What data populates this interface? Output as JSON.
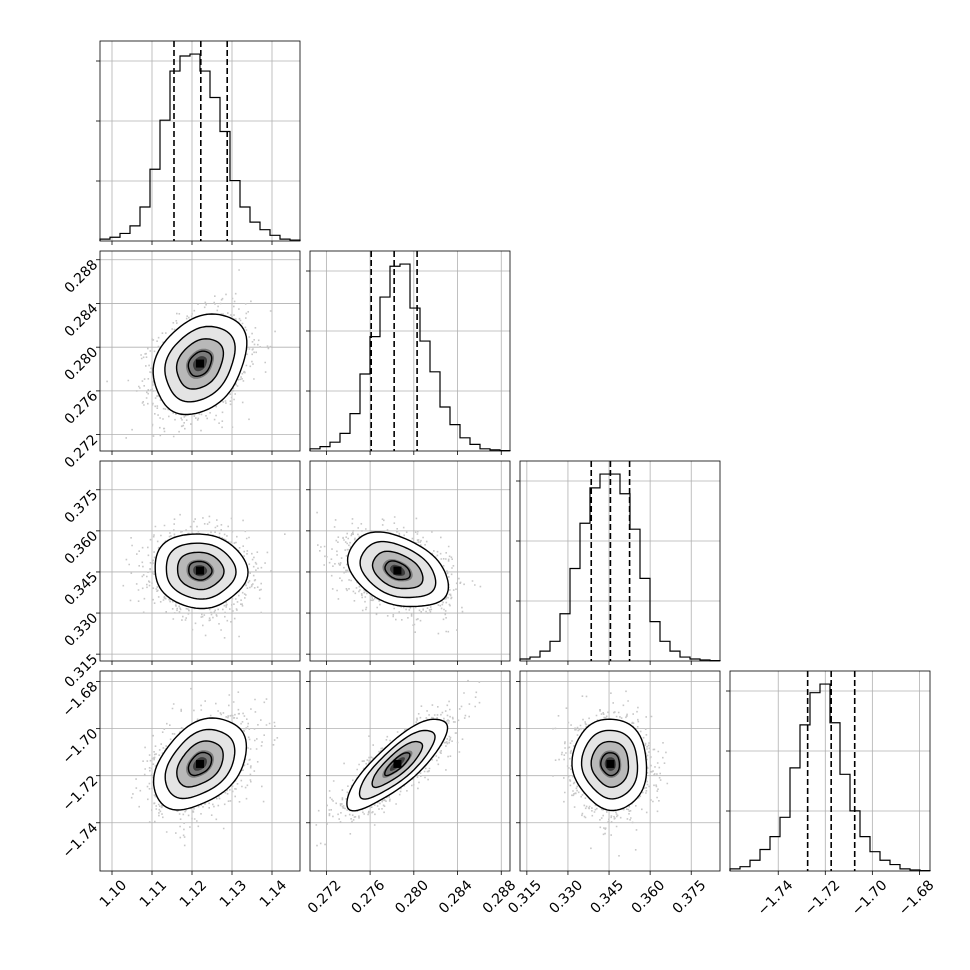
{
  "chart_data": {
    "type": "corner",
    "grid": true,
    "parameters": [
      {
        "range": [
          1.097,
          1.147
        ],
        "ticks": [
          1.1,
          1.11,
          1.12,
          1.13,
          1.14
        ],
        "tick_labels": [
          "1.10",
          "1.11",
          "1.12",
          "1.13",
          "1.14"
        ],
        "quantiles": [
          1.1155,
          1.1222,
          1.1288
        ],
        "hist_edges": [
          1.097,
          1.147
        ],
        "hist_counts": [
          1,
          2,
          4,
          8,
          18,
          38,
          64,
          90,
          98,
          99,
          90,
          76,
          58,
          32,
          18,
          10,
          6,
          3,
          1,
          0.5
        ],
        "mean": 1.122,
        "sd": 0.0058
      },
      {
        "range": [
          0.2705,
          0.2888
        ],
        "ticks": [
          0.272,
          0.276,
          0.28,
          0.284,
          0.288
        ],
        "tick_labels": [
          "0.272",
          "0.276",
          "0.280",
          "0.284",
          "0.288"
        ],
        "quantiles": [
          0.2761,
          0.2782,
          0.2803
        ],
        "hist_edges": [
          0.2705,
          0.2888
        ],
        "hist_counts": [
          1,
          2,
          4,
          8,
          17,
          35,
          52,
          70,
          84,
          85,
          65,
          50,
          36,
          20,
          12,
          6,
          3,
          1,
          0.5,
          0.2
        ],
        "mean": 0.2785,
        "sd": 0.0023
      },
      {
        "range": [
          0.3125,
          0.3855
        ],
        "ticks": [
          0.315,
          0.33,
          0.345,
          0.36,
          0.375
        ],
        "tick_labels": [
          "0.315",
          "0.330",
          "0.345",
          "0.360",
          "0.375"
        ],
        "quantiles": [
          0.3385,
          0.3455,
          0.3525
        ],
        "hist_edges": [
          0.3125,
          0.3855
        ],
        "hist_counts": [
          1,
          2,
          5,
          10,
          24,
          47,
          70,
          88,
          95,
          95,
          85,
          67,
          42,
          20,
          10,
          5,
          2,
          1,
          0.5,
          0.2
        ],
        "mean": 0.3455,
        "sd": 0.0068
      },
      {
        "range": [
          -1.7605,
          -1.6755
        ],
        "ticks": [
          -1.74,
          -1.72,
          -1.7,
          -1.68
        ],
        "tick_labels": [
          "−1.74",
          "−1.72",
          "−1.70",
          "−1.68"
        ],
        "quantiles": [
          -1.7275,
          -1.7175,
          -1.7075
        ],
        "hist_edges": [
          -1.7605,
          -1.6755
        ],
        "hist_counts": [
          1,
          2,
          5,
          10,
          16,
          25,
          48,
          68,
          83,
          87,
          69,
          45,
          28,
          16,
          9,
          5,
          3,
          1,
          0.5,
          0.2
        ],
        "mean": -1.715,
        "sd": 0.0097
      }
    ],
    "panels_2d": [
      {
        "x": 0,
        "y": 1,
        "rho": 0.28
      },
      {
        "x": 0,
        "y": 2,
        "rho": -0.05
      },
      {
        "x": 1,
        "y": 2,
        "rho": -0.35
      },
      {
        "x": 0,
        "y": 3,
        "rho": 0.38
      },
      {
        "x": 1,
        "y": 3,
        "rho": 0.82
      },
      {
        "x": 2,
        "y": 3,
        "rho": -0.05
      }
    ],
    "contour_levels": [
      "0.5 sigma",
      "1 sigma",
      "1.5 sigma",
      "2 sigma"
    ]
  }
}
